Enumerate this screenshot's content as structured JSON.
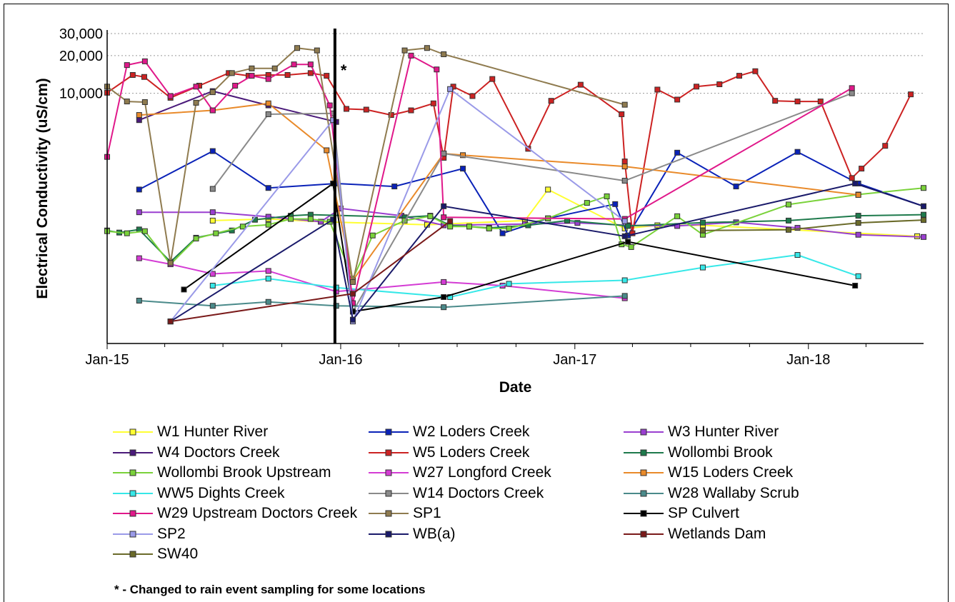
{
  "chart_data": {
    "type": "line",
    "title": "",
    "xlabel": "Date",
    "ylabel": "Electrical Conductivity (uS/cm)",
    "y_scale": "log",
    "ylim": [
      100,
      30000
    ],
    "xlim": [
      "2015-01-01",
      "2018-06-30"
    ],
    "x_ticks": [
      {
        "label": "Jan-15",
        "date": "2015-01-01"
      },
      {
        "label": "Jan-16",
        "date": "2016-01-01"
      },
      {
        "label": "Jan-17",
        "date": "2017-01-01"
      },
      {
        "label": "Jan-18",
        "date": "2018-01-01"
      }
    ],
    "y_ticks": [
      {
        "label": "10,000",
        "value": 10000
      },
      {
        "label": "20,000",
        "value": 20000
      },
      {
        "label": "30,000",
        "value": 30000
      }
    ],
    "grid": "horizontal dotted",
    "legend_position": "bottom",
    "annotation": {
      "text": "*",
      "date": "2015-12-23",
      "note": "- Changed to rain event sampling for some locations"
    },
    "series": [
      {
        "name": "W1 Hunter River",
        "color": "#ffff33",
        "points": [
          [
            "2015-06-15",
            960
          ],
          [
            "2015-09-10",
            990
          ],
          [
            "2015-12-01",
            940
          ],
          [
            "2016-05-15",
            890
          ],
          [
            "2016-10-15",
            960
          ],
          [
            "2016-11-20",
            1700
          ],
          [
            "2017-03-20",
            830
          ],
          [
            "2017-05-10",
            880
          ],
          [
            "2017-07-20",
            880
          ],
          [
            "2018-06-20",
            720
          ]
        ]
      },
      {
        "name": "W2 Loders Creek",
        "color": "#0a22b8",
        "points": [
          [
            "2015-02-20",
            1700
          ],
          [
            "2015-06-15",
            3450
          ],
          [
            "2015-09-10",
            1750
          ],
          [
            "2015-12-25",
            1900
          ],
          [
            "2016-03-25",
            1800
          ],
          [
            "2016-07-10",
            2500
          ],
          [
            "2016-09-10",
            760
          ],
          [
            "2016-11-20",
            1000
          ],
          [
            "2017-03-05",
            1300
          ],
          [
            "2017-03-25",
            730
          ],
          [
            "2017-06-10",
            3350
          ],
          [
            "2017-09-10",
            1800
          ],
          [
            "2017-12-15",
            3400
          ],
          [
            "2018-03-20",
            1900
          ],
          [
            "2018-06-30",
            1250
          ]
        ]
      },
      {
        "name": "W3 Hunter River",
        "color": "#9a3fd0",
        "points": [
          [
            "2015-02-20",
            1120
          ],
          [
            "2015-06-15",
            1120
          ],
          [
            "2015-09-10",
            1030
          ],
          [
            "2015-12-01",
            940
          ],
          [
            "2016-01-01",
            1200
          ],
          [
            "2016-04-05",
            1050
          ],
          [
            "2016-06-10",
            880
          ],
          [
            "2016-10-15",
            900
          ],
          [
            "2017-01-05",
            920
          ],
          [
            "2017-03-25",
            880
          ],
          [
            "2017-06-10",
            870
          ],
          [
            "2017-09-10",
            930
          ],
          [
            "2017-12-15",
            840
          ],
          [
            "2018-03-20",
            740
          ],
          [
            "2018-06-30",
            710
          ]
        ]
      },
      {
        "name": "W4 Doctors Creek",
        "color": "#4a1a7a",
        "points": [
          [
            "2015-02-20",
            6100
          ],
          [
            "2015-06-15",
            10400
          ],
          [
            "2015-09-10",
            8000
          ],
          [
            "2015-12-25",
            5900
          ]
        ]
      },
      {
        "name": "W5 Loders Creek",
        "color": "#cc2222",
        "points": [
          [
            "2015-01-01",
            10100
          ],
          [
            "2015-02-10",
            14000
          ],
          [
            "2015-02-28",
            13500
          ],
          [
            "2015-04-10",
            9200
          ],
          [
            "2015-05-25",
            11500
          ],
          [
            "2015-07-10",
            14500
          ],
          [
            "2015-08-10",
            13800
          ],
          [
            "2015-09-10",
            14000
          ],
          [
            "2015-10-10",
            14000
          ],
          [
            "2015-11-15",
            14500
          ],
          [
            "2015-12-10",
            13800
          ],
          [
            "2016-01-10",
            7500
          ],
          [
            "2016-02-10",
            7400
          ],
          [
            "2016-03-20",
            6700
          ],
          [
            "2016-04-20",
            7300
          ],
          [
            "2016-05-25",
            8300
          ],
          [
            "2016-06-10",
            3050
          ],
          [
            "2016-06-25",
            11300
          ],
          [
            "2016-07-25",
            9500
          ],
          [
            "2016-08-25",
            13000
          ],
          [
            "2016-10-20",
            3600
          ],
          [
            "2016-11-25",
            8700
          ],
          [
            "2017-01-10",
            11700
          ],
          [
            "2017-03-15",
            6800
          ],
          [
            "2017-03-20",
            2850
          ],
          [
            "2017-04-01",
            760
          ],
          [
            "2017-05-10",
            10700
          ],
          [
            "2017-06-10",
            8900
          ],
          [
            "2017-07-10",
            11300
          ],
          [
            "2017-08-15",
            11800
          ],
          [
            "2017-09-15",
            13800
          ],
          [
            "2017-10-10",
            15000
          ],
          [
            "2017-11-10",
            8700
          ],
          [
            "2017-12-15",
            8600
          ],
          [
            "2018-01-20",
            8600
          ],
          [
            "2018-03-10",
            2100
          ],
          [
            "2018-03-25",
            2500
          ],
          [
            "2018-05-01",
            3800
          ],
          [
            "2018-06-10",
            9800
          ]
        ]
      },
      {
        "name": "Wollombi Brook",
        "color": "#1e7a4c",
        "points": [
          [
            "2015-01-01",
            800
          ],
          [
            "2015-01-20",
            770
          ],
          [
            "2015-02-20",
            815
          ],
          [
            "2015-04-10",
            450
          ],
          [
            "2015-05-20",
            700
          ],
          [
            "2015-07-15",
            800
          ],
          [
            "2015-08-20",
            975
          ],
          [
            "2015-10-15",
            1050
          ],
          [
            "2015-11-15",
            1070
          ],
          [
            "2016-04-10",
            1020
          ],
          [
            "2016-05-20",
            1050
          ],
          [
            "2016-06-20",
            880
          ],
          [
            "2016-07-20",
            860
          ],
          [
            "2016-08-20",
            840
          ],
          [
            "2016-10-20",
            880
          ],
          [
            "2016-12-20",
            960
          ],
          [
            "2017-03-25",
            870
          ],
          [
            "2017-07-20",
            925
          ],
          [
            "2017-12-01",
            960
          ],
          [
            "2018-03-20",
            1050
          ],
          [
            "2018-06-30",
            1070
          ]
        ]
      },
      {
        "name": "Wollombi Brook Upstream",
        "color": "#7ad23a",
        "points": [
          [
            "2015-01-01",
            790
          ],
          [
            "2015-02-01",
            760
          ],
          [
            "2015-03-01",
            790
          ],
          [
            "2015-04-10",
            430
          ],
          [
            "2015-05-20",
            690
          ],
          [
            "2015-06-20",
            760
          ],
          [
            "2015-08-01",
            860
          ],
          [
            "2015-09-10",
            890
          ],
          [
            "2015-10-15",
            990
          ],
          [
            "2015-11-15",
            990
          ],
          [
            "2015-12-15",
            940
          ],
          [
            "2016-01-20",
            330
          ],
          [
            "2016-02-20",
            730
          ],
          [
            "2016-04-10",
            960
          ],
          [
            "2016-05-20",
            1040
          ],
          [
            "2016-06-20",
            860
          ],
          [
            "2016-07-20",
            860
          ],
          [
            "2016-08-20",
            830
          ],
          [
            "2016-09-20",
            830
          ],
          [
            "2016-11-20",
            1000
          ],
          [
            "2017-01-20",
            1330
          ],
          [
            "2017-02-20",
            1500
          ],
          [
            "2017-03-15",
            620
          ],
          [
            "2017-03-30",
            590
          ],
          [
            "2017-06-10",
            1040
          ],
          [
            "2017-07-20",
            740
          ],
          [
            "2017-12-01",
            1290
          ],
          [
            "2018-03-20",
            1550
          ],
          [
            "2018-06-30",
            1750
          ]
        ]
      },
      {
        "name": "W27 Longford Creek",
        "color": "#d43cd4",
        "points": [
          [
            "2015-02-20",
            480
          ],
          [
            "2015-04-10",
            430
          ],
          [
            "2015-06-15",
            360
          ],
          [
            "2015-09-10",
            380
          ],
          [
            "2015-12-25",
            260
          ],
          [
            "2016-06-10",
            310
          ],
          [
            "2016-09-10",
            290
          ],
          [
            "2017-03-20",
            230
          ]
        ]
      },
      {
        "name": "W15 Loders Creek",
        "color": "#e98a2a",
        "points": [
          [
            "2015-02-20",
            6700
          ],
          [
            "2015-06-15",
            7300
          ],
          [
            "2015-09-10",
            8300
          ],
          [
            "2015-12-10",
            3500
          ],
          [
            "2016-01-20",
            320
          ],
          [
            "2016-06-10",
            3300
          ],
          [
            "2016-07-10",
            3200
          ],
          [
            "2017-03-20",
            2600
          ],
          [
            "2018-03-20",
            1540
          ]
        ]
      },
      {
        "name": "WW5 Dights Creek",
        "color": "#36e8e8",
        "points": [
          [
            "2015-06-15",
            290
          ],
          [
            "2015-09-10",
            330
          ],
          [
            "2015-12-25",
            280
          ],
          [
            "2016-06-20",
            235
          ],
          [
            "2016-09-20",
            300
          ],
          [
            "2017-03-20",
            320
          ],
          [
            "2017-07-20",
            405
          ],
          [
            "2017-12-15",
            510
          ],
          [
            "2018-03-20",
            345
          ]
        ]
      },
      {
        "name": "W14 Doctors Creek",
        "color": "#8a8a8a",
        "points": [
          [
            "2015-06-15",
            1720
          ],
          [
            "2015-09-10",
            6800
          ],
          [
            "2015-12-20",
            6900
          ],
          [
            "2016-01-20",
            180
          ],
          [
            "2016-06-10",
            3300
          ],
          [
            "2017-03-20",
            2000
          ],
          [
            "2018-03-10",
            10000
          ]
        ]
      },
      {
        "name": "W28 Wallaby Scrub",
        "color": "#4a8a8a",
        "points": [
          [
            "2015-02-20",
            220
          ],
          [
            "2015-06-15",
            200
          ],
          [
            "2015-09-10",
            215
          ],
          [
            "2015-12-25",
            200
          ],
          [
            "2016-06-10",
            195
          ],
          [
            "2017-03-20",
            240
          ]
        ]
      },
      {
        "name": "W29 Upstream Doctors Creek",
        "color": "#e0188a",
        "points": [
          [
            "2015-01-01",
            3100
          ],
          [
            "2015-02-01",
            16800
          ],
          [
            "2015-03-01",
            18000
          ],
          [
            "2015-04-10",
            9500
          ],
          [
            "2015-05-20",
            11300
          ],
          [
            "2015-06-15",
            7300
          ],
          [
            "2015-07-20",
            11500
          ],
          [
            "2015-08-15",
            13800
          ],
          [
            "2015-09-10",
            13000
          ],
          [
            "2015-10-20",
            17000
          ],
          [
            "2015-11-15",
            17000
          ],
          [
            "2015-12-15",
            8000
          ],
          [
            "2016-01-20",
            210
          ],
          [
            "2016-04-20",
            20000
          ],
          [
            "2016-05-30",
            15500
          ],
          [
            "2016-06-10",
            1020
          ],
          [
            "2017-03-20",
            990
          ],
          [
            "2018-03-10",
            11000
          ]
        ]
      },
      {
        "name": "SP1",
        "color": "#8f7b4f",
        "points": [
          [
            "2015-01-01",
            11300
          ],
          [
            "2015-02-01",
            8600
          ],
          [
            "2015-03-01",
            8500
          ],
          [
            "2015-04-10",
            440
          ],
          [
            "2015-05-20",
            8400
          ],
          [
            "2015-06-15",
            10200
          ],
          [
            "2015-07-15",
            14500
          ],
          [
            "2015-08-15",
            15800
          ],
          [
            "2015-09-20",
            15800
          ],
          [
            "2015-10-25",
            23000
          ],
          [
            "2015-11-25",
            22000
          ],
          [
            "2016-01-20",
            310
          ],
          [
            "2016-04-10",
            22000
          ],
          [
            "2016-05-15",
            23000
          ],
          [
            "2016-06-10",
            20500
          ],
          [
            "2017-03-20",
            8100
          ]
        ]
      },
      {
        "name": "SP Culvert",
        "color": "#000000",
        "points": [
          [
            "2015-05-01",
            270
          ],
          [
            "2015-12-20",
            1900
          ],
          [
            "2016-01-20",
            180
          ],
          [
            "2016-06-10",
            235
          ],
          [
            "2017-03-25",
            650
          ],
          [
            "2018-03-15",
            290
          ]
        ]
      },
      {
        "name": "SP2",
        "color": "#9a9ae8",
        "points": [
          [
            "2015-04-10",
            150
          ],
          [
            "2015-12-20",
            6100
          ],
          [
            "2016-01-20",
            150
          ],
          [
            "2016-06-20",
            10800
          ],
          [
            "2017-03-20",
            950
          ]
        ]
      },
      {
        "name": "WB(a)",
        "color": "#1a1a6a",
        "points": [
          [
            "2015-04-10",
            150
          ],
          [
            "2015-12-20",
            980
          ],
          [
            "2016-01-20",
            155
          ],
          [
            "2016-06-10",
            1250
          ],
          [
            "2017-03-20",
            720
          ],
          [
            "2018-03-15",
            1900
          ],
          [
            "2018-06-30",
            1250
          ]
        ]
      },
      {
        "name": "Wetlands Dam",
        "color": "#7a1a1a",
        "points": [
          [
            "2015-04-10",
            150
          ],
          [
            "2016-01-20",
            250
          ],
          [
            "2016-06-20",
            950
          ]
        ]
      },
      {
        "name": "SW40",
        "color": "#6b6b2a",
        "points": [
          [
            "2017-07-20",
            800
          ],
          [
            "2017-12-01",
            810
          ],
          [
            "2018-03-20",
            920
          ],
          [
            "2018-06-30",
            970
          ]
        ]
      }
    ]
  },
  "footnote": "* - Changed to rain event sampling for some locations"
}
